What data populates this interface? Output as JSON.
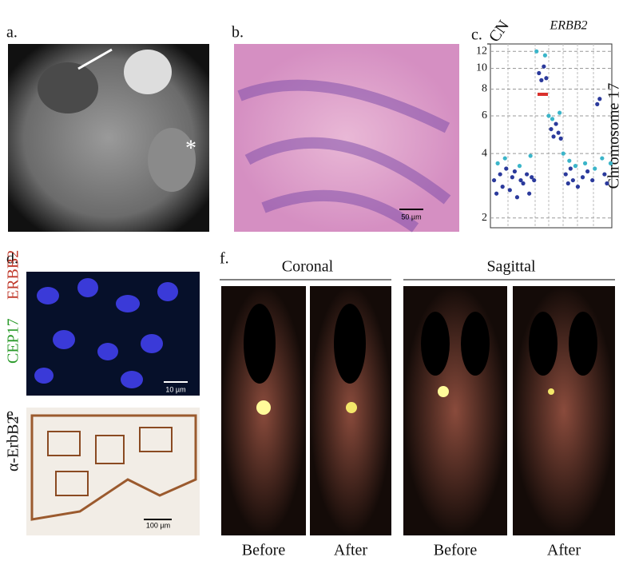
{
  "panels": {
    "a": {
      "label": "a."
    },
    "b": {
      "label": "b.",
      "scale": "50 µm"
    },
    "c": {
      "label": "c."
    },
    "d": {
      "label": "d.",
      "stain_green": "CEP17",
      "stain_red": "ERBB2",
      "scale": "10 µm"
    },
    "e": {
      "label": "e.",
      "stain": "α-ErbB2",
      "scale": "100 µm"
    },
    "f": {
      "label": "f.",
      "groups": [
        {
          "title": "Coronal",
          "images": [
            "Before",
            "After"
          ]
        },
        {
          "title": "Sagittal",
          "images": [
            "Before",
            "After"
          ]
        }
      ]
    }
  },
  "chart_data": {
    "type": "scatter",
    "y_label": "CN",
    "gene": "ERBB2",
    "side_label": "Chromosome 17",
    "ylog": true,
    "ylim": [
      1.8,
      13
    ],
    "yticks": [
      2,
      4,
      6,
      8,
      10,
      12
    ],
    "xlim": [
      0,
      100
    ],
    "grid": true,
    "series": [
      {
        "color": "#2b3a9c",
        "x": [
          3,
          5,
          8,
          10,
          13,
          16,
          18,
          20,
          22,
          25,
          27,
          30,
          32,
          34,
          36,
          40,
          42,
          44,
          46,
          50,
          52,
          54,
          56,
          58,
          62,
          64,
          66,
          68,
          72,
          76,
          80,
          84,
          88,
          90,
          94,
          96
        ],
        "values": [
          3.0,
          2.6,
          3.2,
          2.8,
          3.4,
          2.7,
          3.1,
          3.3,
          2.5,
          3.0,
          2.9,
          3.2,
          2.6,
          3.1,
          3.0,
          9.5,
          8.8,
          10.2,
          9.0,
          5.2,
          4.8,
          5.5,
          5.0,
          4.7,
          3.2,
          2.9,
          3.4,
          3.0,
          2.8,
          3.1,
          3.3,
          3.0,
          6.8,
          7.2,
          3.2,
          2.9
        ]
      },
      {
        "color": "#3bb5c9",
        "x": [
          6,
          12,
          24,
          33,
          38,
          45,
          48,
          51,
          57,
          60,
          65,
          70,
          78,
          86,
          92,
          99
        ],
        "values": [
          3.6,
          3.8,
          3.5,
          3.9,
          12.0,
          11.5,
          6.0,
          5.8,
          6.2,
          4.0,
          3.7,
          3.5,
          3.6,
          3.4,
          3.8,
          3.6
        ]
      }
    ]
  }
}
